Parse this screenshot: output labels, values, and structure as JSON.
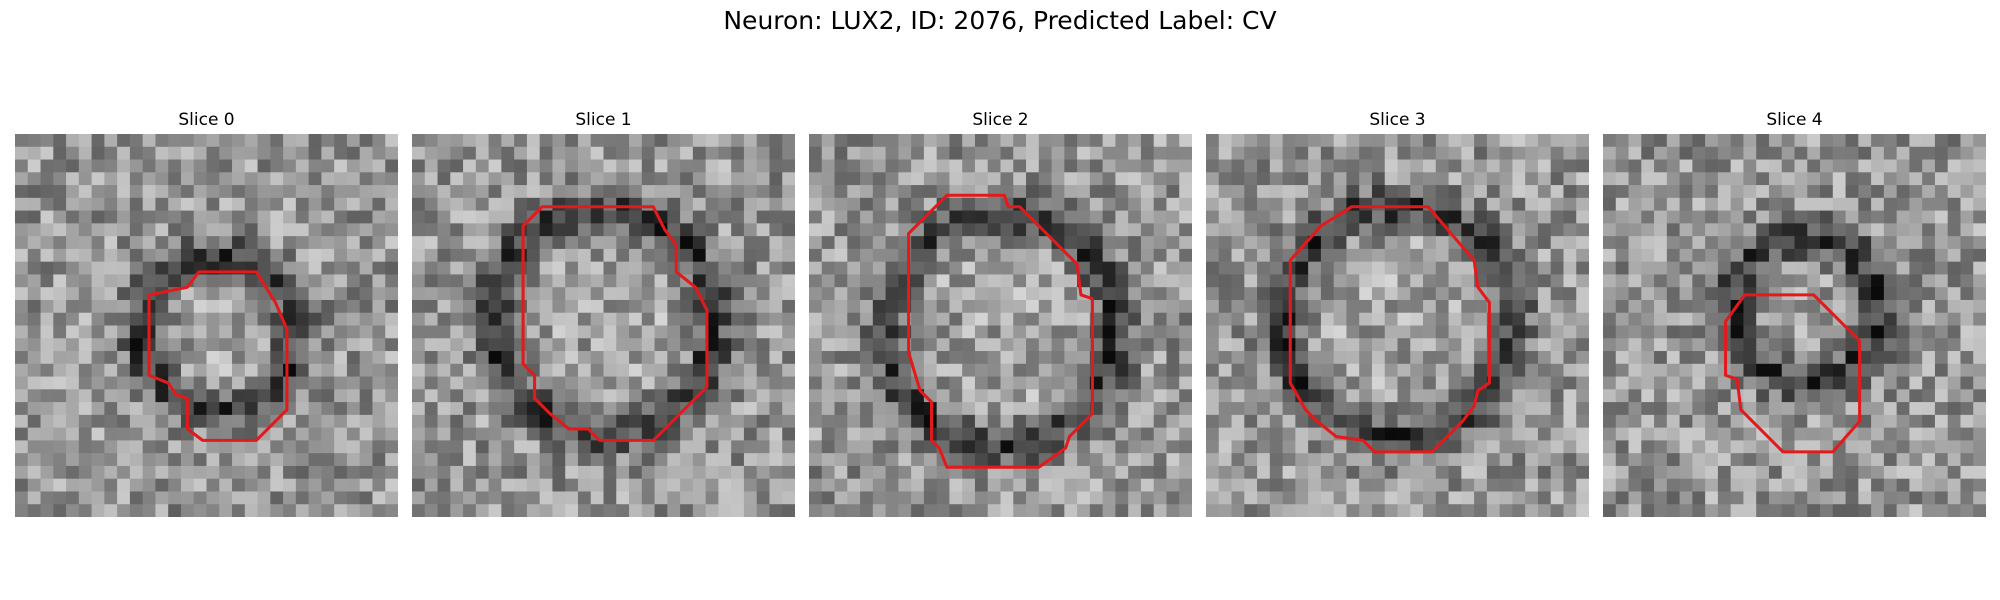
{
  "figure": {
    "title": "Neuron: LUX2, ID: 2076, Predicted Label: CV",
    "outline_color": "#e31a1c"
  },
  "panels": [
    {
      "title": "Slice 0",
      "seed": 11,
      "ring_r": 0.2,
      "ring_cx": 0.53,
      "ring_cy": 0.52,
      "contour": [
        [
          0.35,
          0.42
        ],
        [
          0.45,
          0.4
        ],
        [
          0.48,
          0.36
        ],
        [
          0.63,
          0.36
        ],
        [
          0.68,
          0.44
        ],
        [
          0.71,
          0.51
        ],
        [
          0.71,
          0.72
        ],
        [
          0.63,
          0.8
        ],
        [
          0.49,
          0.8
        ],
        [
          0.45,
          0.77
        ],
        [
          0.45,
          0.69
        ],
        [
          0.42,
          0.68
        ],
        [
          0.4,
          0.65
        ],
        [
          0.35,
          0.63
        ]
      ]
    },
    {
      "title": "Slice 1",
      "seed": 23,
      "ring_r": 0.29,
      "ring_cx": 0.5,
      "ring_cy": 0.49,
      "contour": [
        [
          0.29,
          0.24
        ],
        [
          0.34,
          0.19
        ],
        [
          0.63,
          0.19
        ],
        [
          0.66,
          0.25
        ],
        [
          0.69,
          0.29
        ],
        [
          0.69,
          0.36
        ],
        [
          0.74,
          0.4
        ],
        [
          0.77,
          0.46
        ],
        [
          0.77,
          0.66
        ],
        [
          0.63,
          0.8
        ],
        [
          0.49,
          0.8
        ],
        [
          0.46,
          0.77
        ],
        [
          0.41,
          0.77
        ],
        [
          0.36,
          0.73
        ],
        [
          0.32,
          0.69
        ],
        [
          0.32,
          0.63
        ],
        [
          0.29,
          0.6
        ]
      ]
    },
    {
      "title": "Slice 2",
      "seed": 37,
      "ring_r": 0.3,
      "ring_cx": 0.5,
      "ring_cy": 0.51,
      "contour": [
        [
          0.26,
          0.26
        ],
        [
          0.36,
          0.16
        ],
        [
          0.51,
          0.16
        ],
        [
          0.52,
          0.19
        ],
        [
          0.55,
          0.19
        ],
        [
          0.6,
          0.24
        ],
        [
          0.7,
          0.34
        ],
        [
          0.71,
          0.42
        ],
        [
          0.74,
          0.43
        ],
        [
          0.74,
          0.73
        ],
        [
          0.68,
          0.79
        ],
        [
          0.67,
          0.82
        ],
        [
          0.6,
          0.87
        ],
        [
          0.36,
          0.87
        ],
        [
          0.34,
          0.82
        ],
        [
          0.32,
          0.8
        ],
        [
          0.32,
          0.7
        ],
        [
          0.29,
          0.67
        ],
        [
          0.26,
          0.57
        ]
      ]
    },
    {
      "title": "Slice 3",
      "seed": 51,
      "ring_r": 0.3,
      "ring_cx": 0.5,
      "ring_cy": 0.49,
      "contour": [
        [
          0.22,
          0.33
        ],
        [
          0.3,
          0.24
        ],
        [
          0.38,
          0.19
        ],
        [
          0.58,
          0.19
        ],
        [
          0.64,
          0.26
        ],
        [
          0.7,
          0.33
        ],
        [
          0.71,
          0.4
        ],
        [
          0.74,
          0.44
        ],
        [
          0.74,
          0.65
        ],
        [
          0.71,
          0.67
        ],
        [
          0.7,
          0.71
        ],
        [
          0.67,
          0.75
        ],
        [
          0.59,
          0.83
        ],
        [
          0.44,
          0.83
        ],
        [
          0.41,
          0.8
        ],
        [
          0.34,
          0.79
        ],
        [
          0.29,
          0.75
        ],
        [
          0.26,
          0.72
        ],
        [
          0.22,
          0.65
        ]
      ]
    },
    {
      "title": "Slice 4",
      "seed": 67,
      "ring_r": 0.19,
      "ring_cx": 0.53,
      "ring_cy": 0.46,
      "contour": [
        [
          0.32,
          0.49
        ],
        [
          0.37,
          0.42
        ],
        [
          0.41,
          0.42
        ],
        [
          0.55,
          0.42
        ],
        [
          0.61,
          0.48
        ],
        [
          0.67,
          0.54
        ],
        [
          0.67,
          0.75
        ],
        [
          0.6,
          0.83
        ],
        [
          0.47,
          0.83
        ],
        [
          0.36,
          0.72
        ],
        [
          0.35,
          0.64
        ],
        [
          0.32,
          0.63
        ]
      ]
    }
  ]
}
